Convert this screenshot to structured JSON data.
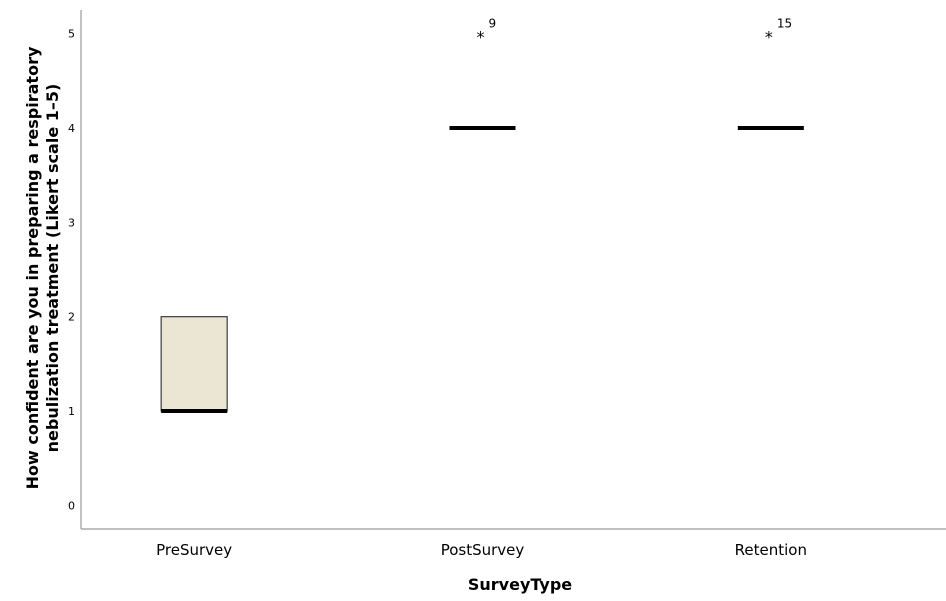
{
  "chart_data": {
    "type": "boxplot",
    "categories": [
      "PreSurvey",
      "PostSurvey",
      "Retention"
    ],
    "boxes": [
      {
        "category": "PreSurvey",
        "q1": 1,
        "median": 1,
        "q3": 2,
        "whisker_low": 1,
        "whisker_high": 2,
        "outliers": []
      },
      {
        "category": "PostSurvey",
        "q1": 4,
        "median": 4,
        "q3": 4,
        "whisker_low": 4,
        "whisker_high": 4,
        "outliers": [
          {
            "value": 5,
            "label": "9"
          }
        ]
      },
      {
        "category": "Retention",
        "q1": 4,
        "median": 4,
        "q3": 4,
        "whisker_low": 4,
        "whisker_high": 4,
        "outliers": [
          {
            "value": 5,
            "label": "15"
          }
        ]
      }
    ],
    "xlabel": "SurveyType",
    "ylabel_lines": [
      "How confident are you in preparing a respiratory",
      "nebulization treatment (Likert scale 1–5)"
    ],
    "yticks": [
      0,
      1,
      2,
      3,
      4,
      5
    ],
    "ylim": [
      -0.25,
      5.25
    ],
    "grid": false,
    "box_fill": "#ebe5d3",
    "box_stroke": "#3a3a3a",
    "outlier_marker": "*"
  }
}
